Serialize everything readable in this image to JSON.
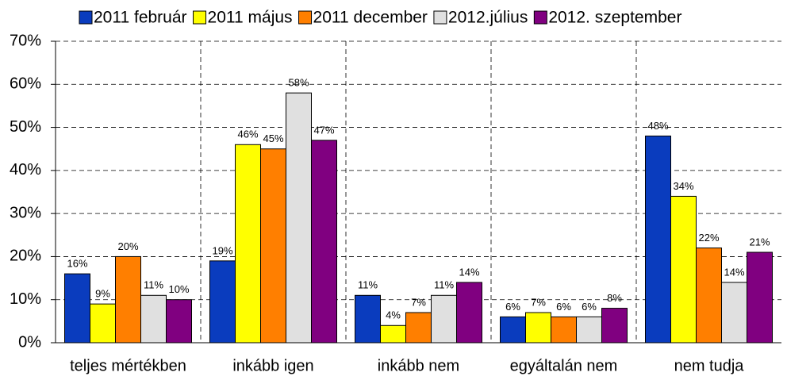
{
  "chart_data": {
    "type": "bar",
    "categories": [
      "teljes mértékben",
      "inkább igen",
      "inkább nem",
      "egyáltalán nem",
      "nem tudja"
    ],
    "series": [
      {
        "name": "2011 február",
        "color": "#0a3cbe",
        "values": [
          16,
          19,
          11,
          6,
          48
        ],
        "value_labels": [
          "16%",
          "19%",
          "11%",
          "6%",
          "48%"
        ]
      },
      {
        "name": "2011 május",
        "color": "#ffff00",
        "values": [
          9,
          46,
          4,
          7,
          34
        ],
        "value_labels": [
          "9%",
          "46%",
          "4%",
          "7%",
          "34%"
        ]
      },
      {
        "name": "2011 december",
        "color": "#ff7f00",
        "values": [
          20,
          45,
          7,
          6,
          22
        ],
        "value_labels": [
          "20%",
          "45%",
          "7%",
          "6%",
          "22%"
        ]
      },
      {
        "name": "2012.július",
        "color": "#e0e0e0",
        "values": [
          11,
          58,
          11,
          6,
          14
        ],
        "value_labels": [
          "11%",
          "58%",
          "11%",
          "6%",
          "14%"
        ]
      },
      {
        "name": "2012. szeptember",
        "color": "#800080",
        "values": [
          10,
          47,
          14,
          8,
          21
        ],
        "value_labels": [
          "10%",
          "47%",
          "14%",
          "8%",
          "21%"
        ]
      }
    ],
    "ylim": [
      0,
      70
    ],
    "yticks": [
      {
        "value": 0,
        "label": "0%"
      },
      {
        "value": 10,
        "label": "10%"
      },
      {
        "value": 20,
        "label": "20%"
      },
      {
        "value": 30,
        "label": "30%"
      },
      {
        "value": 40,
        "label": "40%"
      },
      {
        "value": 50,
        "label": "50%"
      },
      {
        "value": 60,
        "label": "60%"
      },
      {
        "value": 70,
        "label": "70%"
      }
    ],
    "grid": true
  }
}
